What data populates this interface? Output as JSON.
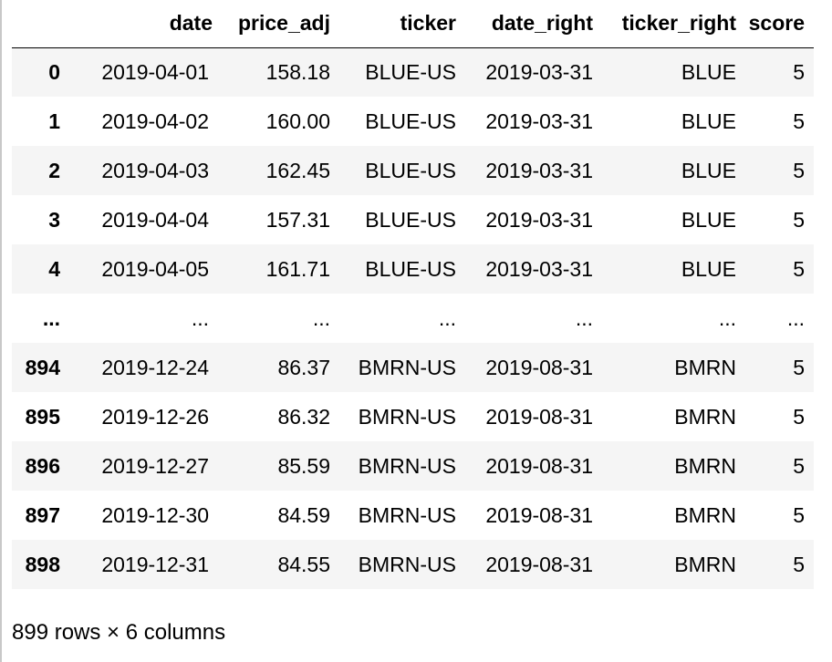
{
  "table": {
    "columns": [
      "",
      "date",
      "price_adj",
      "ticker",
      "date_right",
      "ticker_right",
      "score"
    ],
    "rows": [
      [
        "0",
        "2019-04-01",
        "158.18",
        "BLUE-US",
        "2019-03-31",
        "BLUE",
        "5"
      ],
      [
        "1",
        "2019-04-02",
        "160.00",
        "BLUE-US",
        "2019-03-31",
        "BLUE",
        "5"
      ],
      [
        "2",
        "2019-04-03",
        "162.45",
        "BLUE-US",
        "2019-03-31",
        "BLUE",
        "5"
      ],
      [
        "3",
        "2019-04-04",
        "157.31",
        "BLUE-US",
        "2019-03-31",
        "BLUE",
        "5"
      ],
      [
        "4",
        "2019-04-05",
        "161.71",
        "BLUE-US",
        "2019-03-31",
        "BLUE",
        "5"
      ],
      [
        "...",
        "...",
        "...",
        "...",
        "...",
        "...",
        "..."
      ],
      [
        "894",
        "2019-12-24",
        "86.37",
        "BMRN-US",
        "2019-08-31",
        "BMRN",
        "5"
      ],
      [
        "895",
        "2019-12-26",
        "86.32",
        "BMRN-US",
        "2019-08-31",
        "BMRN",
        "5"
      ],
      [
        "896",
        "2019-12-27",
        "85.59",
        "BMRN-US",
        "2019-08-31",
        "BMRN",
        "5"
      ],
      [
        "897",
        "2019-12-30",
        "84.59",
        "BMRN-US",
        "2019-08-31",
        "BMRN",
        "5"
      ],
      [
        "898",
        "2019-12-31",
        "84.55",
        "BMRN-US",
        "2019-08-31",
        "BMRN",
        "5"
      ]
    ]
  },
  "footer": {
    "summary": "899 rows × 6 columns"
  }
}
